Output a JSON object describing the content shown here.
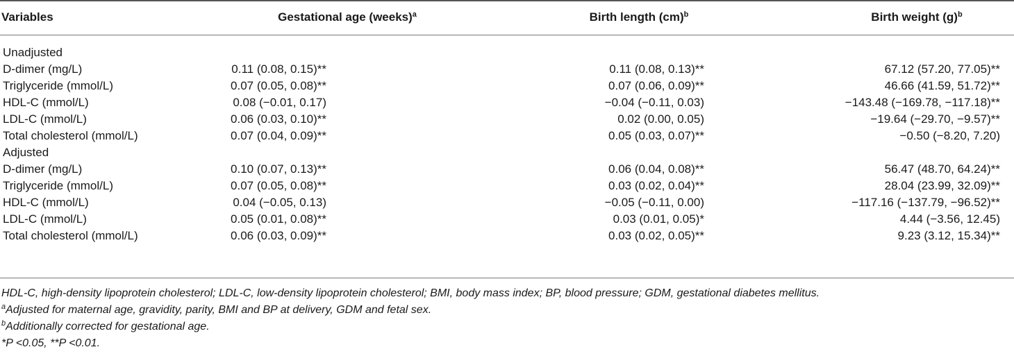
{
  "table": {
    "headers": {
      "variables": "Variables",
      "gestational_age": "Gestational age (weeks)",
      "gestational_age_sup": "a",
      "birth_length": "Birth length (cm)",
      "birth_length_sup": "b",
      "birth_weight": "Birth weight (g)",
      "birth_weight_sup": "b"
    },
    "sections": [
      {
        "label": "Unadjusted",
        "rows": [
          {
            "variable": "D-dimer (mg/L)",
            "ga": "0.11 (0.08, 0.15)**",
            "bl": "0.11 (0.08, 0.13)**",
            "bw": "67.12 (57.20, 77.05)**"
          },
          {
            "variable": "Triglyceride (mmol/L)",
            "ga": "0.07 (0.05, 0.08)**",
            "bl": "0.07 (0.06, 0.09)**",
            "bw": "46.66 (41.59, 51.72)**"
          },
          {
            "variable": "HDL-C (mmol/L)",
            "ga": "0.08 (−0.01, 0.17)",
            "bl": "−0.04 (−0.11, 0.03)",
            "bw": "−143.48 (−169.78, −117.18)**"
          },
          {
            "variable": "LDL-C (mmol/L)",
            "ga": "0.06 (0.03, 0.10)**",
            "bl": "0.02 (0.00, 0.05)",
            "bw": "−19.64 (−29.70, −9.57)**"
          },
          {
            "variable": "Total cholesterol (mmol/L)",
            "ga": "0.07 (0.04, 0.09)**",
            "bl": "0.05 (0.03, 0.07)**",
            "bw": "−0.50 (−8.20, 7.20)"
          }
        ]
      },
      {
        "label": "Adjusted",
        "rows": [
          {
            "variable": "D-dimer (mg/L)",
            "ga": "0.10 (0.07, 0.13)**",
            "bl": "0.06 (0.04, 0.08)**",
            "bw": "56.47 (48.70, 64.24)**"
          },
          {
            "variable": "Triglyceride (mmol/L)",
            "ga": "0.07 (0.05, 0.08)**",
            "bl": "0.03 (0.02, 0.04)**",
            "bw": "28.04 (23.99, 32.09)**"
          },
          {
            "variable": "HDL-C (mmol/L)",
            "ga": "0.04 (−0.05, 0.13)",
            "bl": "−0.05 (−0.11, 0.00)",
            "bw": "−117.16 (−137.79, −96.52)**"
          },
          {
            "variable": "LDL-C (mmol/L)",
            "ga": "0.05 (0.01, 0.08)**",
            "bl": "0.03 (0.01, 0.05)*",
            "bw": "4.44 (−3.56, 12.45)"
          },
          {
            "variable": "Total cholesterol (mmol/L)",
            "ga": "0.06 (0.03, 0.09)**",
            "bl": "0.03 (0.02, 0.05)**",
            "bw": "9.23 (3.12, 15.34)**"
          }
        ]
      }
    ]
  },
  "footnotes": {
    "abbrev": "HDL-C, high-density lipoprotein cholesterol; LDL-C, low-density lipoprotein cholesterol; BMI, body mass index; BP, blood pressure; GDM, gestational diabetes mellitus.",
    "a_mark": "a",
    "a_text": "Adjusted for maternal age, gravidity, parity, BMI and BP at delivery, GDM and fetal sex.",
    "b_mark": "b",
    "b_text": "Additionally corrected for gestational age.",
    "p_text": "*P <0.05, **P <0.01."
  }
}
